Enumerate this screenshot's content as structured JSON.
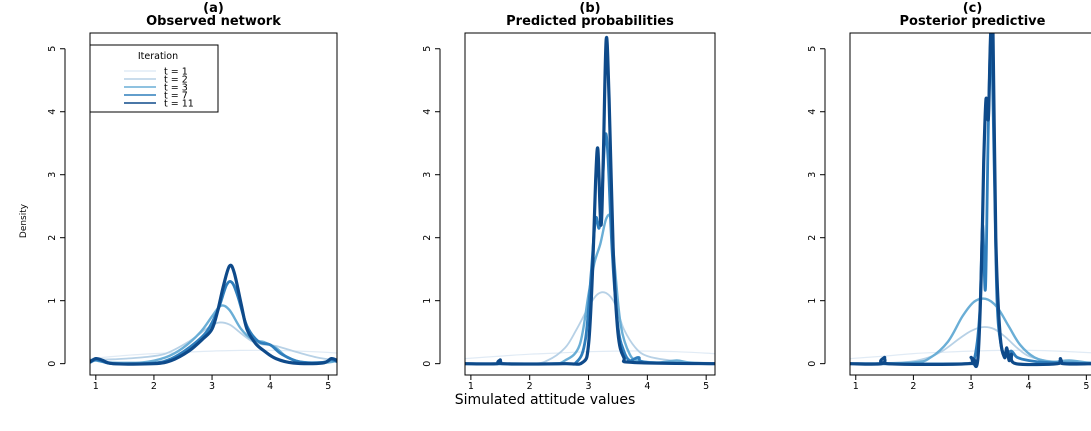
{
  "figure": {
    "xlabel": "Simulated attitude values",
    "ylabel": "Density"
  },
  "legend": {
    "title": "Iteration",
    "entries": [
      "t = 1",
      "t = 2",
      "t = 3",
      "t = 7",
      "t = 11"
    ],
    "placement": "top-left of panel (a)"
  },
  "colors": {
    "t1": "#e1ebf5",
    "t2": "#b7d1e6",
    "t3": "#6aaed6",
    "t7": "#2f7ebc",
    "t11": "#0e4a8a"
  },
  "chart_data": [
    {
      "type": "line",
      "title": "(a)",
      "subtitle": "Observed network",
      "xlim": [
        0.9,
        5.15
      ],
      "ylim": [
        -0.18,
        5.25
      ],
      "xticks": [
        1,
        2,
        3,
        4,
        5
      ],
      "yticks": [
        0,
        1,
        2,
        3,
        4,
        5
      ],
      "series": [
        {
          "name": "t = 1",
          "color": "#e1ebf5",
          "points": [
            [
              0.9,
              0.08
            ],
            [
              1.5,
              0.13
            ],
            [
              2.0,
              0.16
            ],
            [
              2.5,
              0.18
            ],
            [
              3.0,
              0.2
            ],
            [
              3.5,
              0.21
            ],
            [
              4.0,
              0.21
            ],
            [
              4.5,
              0.2
            ],
            [
              5.15,
              0.17
            ]
          ]
        },
        {
          "name": "t = 2",
          "color": "#b7d1e6",
          "points": [
            [
              0.9,
              0.06
            ],
            [
              1.3,
              0.07
            ],
            [
              1.8,
              0.1
            ],
            [
              2.2,
              0.16
            ],
            [
              2.6,
              0.35
            ],
            [
              2.9,
              0.55
            ],
            [
              3.1,
              0.65
            ],
            [
              3.3,
              0.62
            ],
            [
              3.5,
              0.48
            ],
            [
              3.7,
              0.35
            ],
            [
              3.9,
              0.3
            ],
            [
              4.1,
              0.28
            ],
            [
              4.4,
              0.2
            ],
            [
              4.8,
              0.1
            ],
            [
              5.15,
              0.05
            ]
          ]
        },
        {
          "name": "t = 3",
          "color": "#6aaed6",
          "points": [
            [
              0.9,
              0.04
            ],
            [
              1.0,
              0.05
            ],
            [
              1.2,
              0.02
            ],
            [
              1.8,
              0.02
            ],
            [
              2.2,
              0.1
            ],
            [
              2.5,
              0.25
            ],
            [
              2.8,
              0.5
            ],
            [
              3.0,
              0.75
            ],
            [
              3.15,
              0.92
            ],
            [
              3.3,
              0.85
            ],
            [
              3.5,
              0.55
            ],
            [
              3.7,
              0.38
            ],
            [
              3.9,
              0.34
            ],
            [
              4.1,
              0.25
            ],
            [
              4.3,
              0.1
            ],
            [
              4.6,
              0.02
            ],
            [
              5.0,
              0.02
            ],
            [
              5.15,
              0.05
            ]
          ]
        },
        {
          "name": "t = 7",
          "color": "#2f7ebc",
          "points": [
            [
              0.9,
              0.02
            ],
            [
              1.0,
              0.06
            ],
            [
              1.1,
              0.04
            ],
            [
              1.3,
              0.0
            ],
            [
              2.0,
              0.01
            ],
            [
              2.3,
              0.08
            ],
            [
              2.6,
              0.25
            ],
            [
              2.9,
              0.5
            ],
            [
              3.1,
              0.85
            ],
            [
              3.25,
              1.25
            ],
            [
              3.35,
              1.28
            ],
            [
              3.45,
              1.05
            ],
            [
              3.6,
              0.6
            ],
            [
              3.8,
              0.35
            ],
            [
              4.0,
              0.3
            ],
            [
              4.2,
              0.15
            ],
            [
              4.5,
              0.03
            ],
            [
              4.9,
              0.02
            ],
            [
              5.05,
              0.06
            ],
            [
              5.15,
              0.03
            ]
          ]
        },
        {
          "name": "t = 11",
          "color": "#0e4a8a",
          "points": [
            [
              0.9,
              0.03
            ],
            [
              1.0,
              0.08
            ],
            [
              1.1,
              0.06
            ],
            [
              1.3,
              0.0
            ],
            [
              2.0,
              0.0
            ],
            [
              2.3,
              0.05
            ],
            [
              2.6,
              0.2
            ],
            [
              2.85,
              0.4
            ],
            [
              3.0,
              0.55
            ],
            [
              3.1,
              0.85
            ],
            [
              3.2,
              1.25
            ],
            [
              3.3,
              1.55
            ],
            [
              3.38,
              1.45
            ],
            [
              3.5,
              0.95
            ],
            [
              3.6,
              0.55
            ],
            [
              3.75,
              0.32
            ],
            [
              3.9,
              0.2
            ],
            [
              4.1,
              0.08
            ],
            [
              4.4,
              0.01
            ],
            [
              4.9,
              0.01
            ],
            [
              5.05,
              0.08
            ],
            [
              5.15,
              0.05
            ]
          ]
        }
      ]
    },
    {
      "type": "line",
      "title": "(b)",
      "subtitle": "Predicted probabilities",
      "xlim": [
        0.9,
        5.15
      ],
      "ylim": [
        -0.18,
        5.25
      ],
      "xticks": [
        1,
        2,
        3,
        4,
        5
      ],
      "yticks": [
        0,
        1,
        2,
        3,
        4,
        5
      ],
      "series": [
        {
          "name": "t = 1",
          "color": "#e1ebf5",
          "points": [
            [
              0.9,
              0.08
            ],
            [
              1.5,
              0.12
            ],
            [
              2.0,
              0.15
            ],
            [
              2.5,
              0.17
            ],
            [
              3.0,
              0.19
            ],
            [
              3.5,
              0.2
            ],
            [
              4.0,
              0.2
            ],
            [
              4.5,
              0.19
            ],
            [
              5.15,
              0.16
            ]
          ]
        },
        {
          "name": "t = 2",
          "color": "#b7d1e6",
          "points": [
            [
              0.9,
              0.0
            ],
            [
              2.0,
              0.0
            ],
            [
              2.3,
              0.05
            ],
            [
              2.6,
              0.25
            ],
            [
              2.8,
              0.55
            ],
            [
              3.0,
              0.9
            ],
            [
              3.15,
              1.1
            ],
            [
              3.3,
              1.12
            ],
            [
              3.45,
              0.95
            ],
            [
              3.6,
              0.55
            ],
            [
              3.8,
              0.25
            ],
            [
              4.0,
              0.12
            ],
            [
              4.4,
              0.05
            ],
            [
              4.8,
              0.02
            ],
            [
              5.15,
              0.01
            ]
          ]
        },
        {
          "name": "t = 3",
          "color": "#6aaed6",
          "points": [
            [
              0.9,
              0.0
            ],
            [
              2.3,
              0.0
            ],
            [
              2.6,
              0.05
            ],
            [
              2.85,
              0.3
            ],
            [
              3.0,
              1.1
            ],
            [
              3.1,
              1.6
            ],
            [
              3.2,
              1.9
            ],
            [
              3.3,
              2.3
            ],
            [
              3.38,
              2.28
            ],
            [
              3.45,
              1.5
            ],
            [
              3.55,
              0.6
            ],
            [
              3.7,
              0.15
            ],
            [
              3.85,
              0.05
            ],
            [
              4.2,
              0.02
            ],
            [
              4.5,
              0.05
            ],
            [
              4.7,
              0.02
            ],
            [
              5.15,
              0.0
            ]
          ]
        },
        {
          "name": "t = 7",
          "color": "#2f7ebc",
          "points": [
            [
              0.9,
              0.0
            ],
            [
              2.5,
              0.0
            ],
            [
              2.8,
              0.03
            ],
            [
              2.95,
              0.4
            ],
            [
              3.05,
              1.5
            ],
            [
              3.12,
              2.3
            ],
            [
              3.18,
              2.15
            ],
            [
              3.22,
              2.5
            ],
            [
              3.28,
              3.6
            ],
            [
              3.33,
              3.3
            ],
            [
              3.4,
              1.8
            ],
            [
              3.5,
              0.6
            ],
            [
              3.6,
              0.2
            ],
            [
              3.7,
              0.05
            ],
            [
              3.85,
              0.1
            ],
            [
              4.0,
              0.02
            ],
            [
              5.15,
              0.0
            ]
          ]
        },
        {
          "name": "t = 11",
          "color": "#0e4a8a",
          "points": [
            [
              0.9,
              0.0
            ],
            [
              1.45,
              0.0
            ],
            [
              1.5,
              0.06
            ],
            [
              1.55,
              0.0
            ],
            [
              2.6,
              0.0
            ],
            [
              2.9,
              0.02
            ],
            [
              3.0,
              0.3
            ],
            [
              3.07,
              1.5
            ],
            [
              3.12,
              2.9
            ],
            [
              3.16,
              3.4
            ],
            [
              3.21,
              2.2
            ],
            [
              3.25,
              3.2
            ],
            [
              3.3,
              5.15
            ],
            [
              3.35,
              4.2
            ],
            [
              3.42,
              1.8
            ],
            [
              3.5,
              0.5
            ],
            [
              3.6,
              0.1
            ],
            [
              3.75,
              0.02
            ],
            [
              5.15,
              0.0
            ]
          ]
        }
      ]
    },
    {
      "type": "line",
      "title": "(c)",
      "subtitle": "Posterior predictive",
      "xlim": [
        0.9,
        5.15
      ],
      "ylim": [
        -0.18,
        5.25
      ],
      "xticks": [
        1,
        2,
        3,
        4,
        5
      ],
      "yticks": [
        0,
        1,
        2,
        3,
        4,
        5
      ],
      "series": [
        {
          "name": "t = 1",
          "color": "#e1ebf5",
          "points": [
            [
              0.9,
              0.08
            ],
            [
              1.5,
              0.12
            ],
            [
              2.0,
              0.16
            ],
            [
              2.5,
              0.18
            ],
            [
              3.0,
              0.2
            ],
            [
              3.5,
              0.21
            ],
            [
              4.0,
              0.21
            ],
            [
              4.5,
              0.2
            ],
            [
              5.15,
              0.17
            ]
          ]
        },
        {
          "name": "t = 2",
          "color": "#b7d1e6",
          "points": [
            [
              0.9,
              0.0
            ],
            [
              1.8,
              0.02
            ],
            [
              2.2,
              0.08
            ],
            [
              2.5,
              0.2
            ],
            [
              2.8,
              0.4
            ],
            [
              3.0,
              0.52
            ],
            [
              3.2,
              0.58
            ],
            [
              3.4,
              0.55
            ],
            [
              3.6,
              0.42
            ],
            [
              3.8,
              0.25
            ],
            [
              4.0,
              0.12
            ],
            [
              4.3,
              0.05
            ],
            [
              4.7,
              0.02
            ],
            [
              5.15,
              0.01
            ]
          ]
        },
        {
          "name": "t = 3",
          "color": "#6aaed6",
          "points": [
            [
              0.9,
              0.0
            ],
            [
              2.0,
              0.02
            ],
            [
              2.3,
              0.1
            ],
            [
              2.6,
              0.35
            ],
            [
              2.85,
              0.75
            ],
            [
              3.05,
              0.98
            ],
            [
              3.25,
              1.03
            ],
            [
              3.45,
              0.9
            ],
            [
              3.65,
              0.6
            ],
            [
              3.85,
              0.3
            ],
            [
              4.1,
              0.1
            ],
            [
              4.4,
              0.03
            ],
            [
              4.7,
              0.05
            ],
            [
              5.0,
              0.02
            ],
            [
              5.15,
              0.01
            ]
          ]
        },
        {
          "name": "t = 7",
          "color": "#2f7ebc",
          "points": [
            [
              0.9,
              0.0
            ],
            [
              2.9,
              0.0
            ],
            [
              3.05,
              0.05
            ],
            [
              3.15,
              0.8
            ],
            [
              3.2,
              2.2
            ],
            [
              3.25,
              1.2
            ],
            [
              3.3,
              3.8
            ],
            [
              3.35,
              5.2
            ],
            [
              3.4,
              3.2
            ],
            [
              3.45,
              1.0
            ],
            [
              3.52,
              0.3
            ],
            [
              3.6,
              0.15
            ],
            [
              3.7,
              0.2
            ],
            [
              3.8,
              0.1
            ],
            [
              4.0,
              0.05
            ],
            [
              4.3,
              0.02
            ],
            [
              5.15,
              0.0
            ]
          ]
        },
        {
          "name": "t = 11",
          "color": "#0e4a8a",
          "points": [
            [
              0.9,
              0.0
            ],
            [
              1.45,
              0.0
            ],
            [
              1.5,
              0.1
            ],
            [
              1.55,
              0.0
            ],
            [
              2.95,
              0.0
            ],
            [
              3.0,
              0.1
            ],
            [
              3.05,
              0.0
            ],
            [
              3.12,
              0.1
            ],
            [
              3.18,
              1.5
            ],
            [
              3.22,
              3.2
            ],
            [
              3.26,
              4.2
            ],
            [
              3.3,
              3.9
            ],
            [
              3.34,
              5.25
            ],
            [
              3.38,
              5.25
            ],
            [
              3.43,
              2.0
            ],
            [
              3.5,
              0.5
            ],
            [
              3.58,
              0.1
            ],
            [
              3.62,
              0.25
            ],
            [
              3.66,
              0.05
            ],
            [
              3.7,
              0.15
            ],
            [
              3.78,
              0.0
            ],
            [
              4.5,
              0.0
            ],
            [
              4.55,
              0.08
            ],
            [
              4.6,
              0.0
            ],
            [
              5.15,
              0.0
            ]
          ]
        }
      ]
    }
  ]
}
